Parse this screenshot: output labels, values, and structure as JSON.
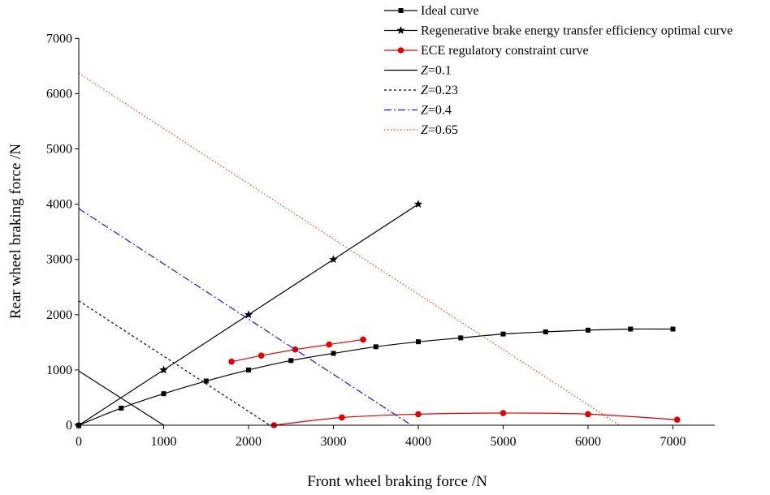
{
  "chart_data": {
    "type": "line",
    "xlabel": "Front wheel braking force /N",
    "ylabel": "Rear wheel braking force /N",
    "xlim": [
      0,
      7500
    ],
    "ylim": [
      0,
      7000
    ],
    "x_ticks": [
      0,
      1000,
      2000,
      3000,
      4000,
      5000,
      6000,
      7000
    ],
    "y_ticks": [
      0,
      1000,
      2000,
      3000,
      4000,
      5000,
      6000,
      7000
    ],
    "x_tick_labels": [
      "0",
      "1000",
      "2000",
      "3000",
      "4000",
      "5000",
      "6000",
      "7000"
    ],
    "y_tick_labels": [
      "0",
      "1000",
      "2000",
      "3000",
      "4000",
      "5000",
      "6000",
      "7000"
    ],
    "grid": false,
    "legend_position": "top-right",
    "series": [
      {
        "name": "Ideal curve",
        "color": "#000000",
        "marker": "square",
        "dash": "solid",
        "smooth": true,
        "x": [
          0,
          500,
          1000,
          1500,
          2000,
          2500,
          3000,
          3500,
          4000,
          4500,
          5000,
          5500,
          6000,
          6500,
          7000
        ],
        "y": [
          0,
          310,
          570,
          800,
          1000,
          1170,
          1300,
          1420,
          1510,
          1580,
          1650,
          1690,
          1720,
          1740,
          1740
        ]
      },
      {
        "name": "Regenerative brake energy transfer efficiency optimal curve",
        "color": "#000000",
        "marker": "star",
        "dash": "solid",
        "smooth": false,
        "x": [
          0,
          1000,
          2000,
          3000,
          4000
        ],
        "y": [
          0,
          1000,
          2000,
          3000,
          4000
        ]
      },
      {
        "name": "ECE regulatory constraint curve",
        "color": "#e00000",
        "marker": "circle",
        "dash": "solid",
        "smooth": false,
        "x": [
          1800,
          2150,
          2550,
          2950,
          3350
        ],
        "y": [
          1150,
          1260,
          1370,
          1460,
          1550
        ]
      },
      {
        "name": "ECE regulatory constraint curve",
        "color": "#e00000",
        "marker": "circle",
        "dash": "solid",
        "smooth": true,
        "show_in_legend": false,
        "x": [
          2300,
          3100,
          4000,
          5000,
          6000,
          7050
        ],
        "y": [
          0,
          140,
          200,
          220,
          200,
          100
        ]
      },
      {
        "name": "Z=0.1",
        "color": "#000000",
        "marker": "none",
        "dash": "solid",
        "smooth": false,
        "x": [
          0,
          1000
        ],
        "y": [
          980,
          0
        ]
      },
      {
        "name": "Z=0.23",
        "color": "#000000",
        "marker": "none",
        "dash": "dotted",
        "smooth": false,
        "x": [
          0,
          2250
        ],
        "y": [
          2250,
          0
        ]
      },
      {
        "name": "Z=0.4",
        "color": "#1a1ad6",
        "marker": "none",
        "dash": "dashdot",
        "smooth": false,
        "x": [
          0,
          3920
        ],
        "y": [
          3920,
          0
        ]
      },
      {
        "name": "Z=0.65",
        "color": "#e8400a",
        "marker": "none",
        "dash": "fine-dotted",
        "smooth": false,
        "x": [
          0,
          6370
        ],
        "y": [
          6370,
          0
        ]
      }
    ]
  }
}
